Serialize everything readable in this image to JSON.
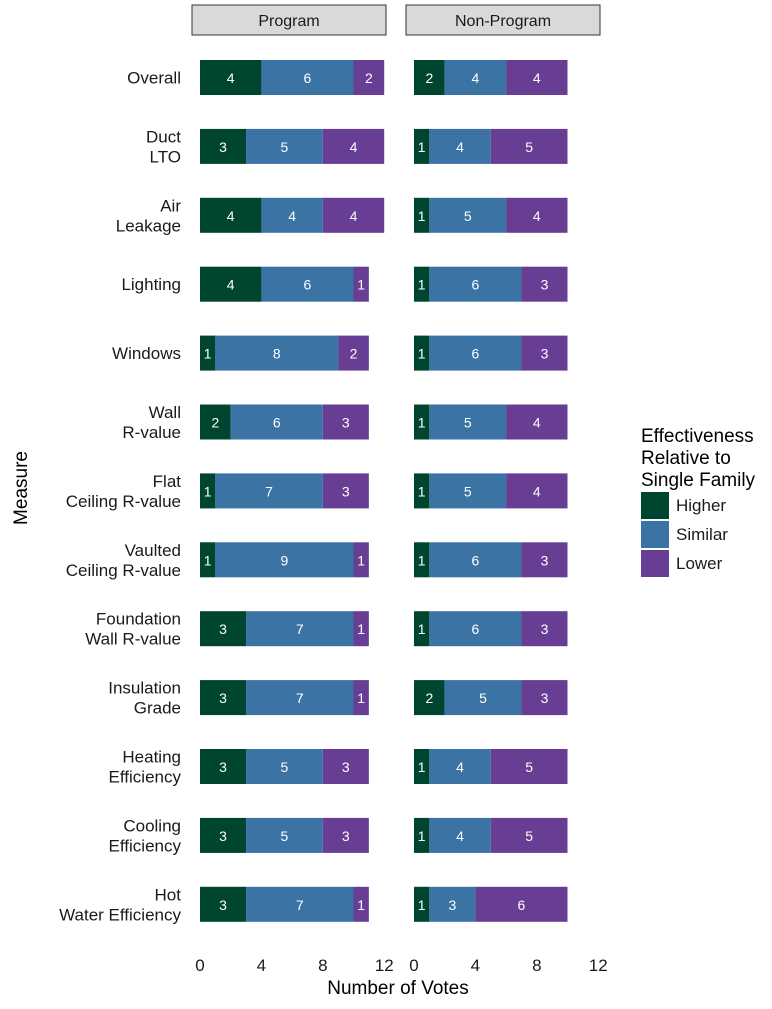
{
  "chart_data": {
    "type": "bar",
    "orientation": "horizontal",
    "stacked": true,
    "xlabel": "Number of Votes",
    "ylabel": "Measure",
    "xlim": [
      0,
      12
    ],
    "xticks": [
      0,
      4,
      8,
      12
    ],
    "grid": false,
    "legend": {
      "title_lines": [
        "Effectiveness",
        "Relative to",
        "Single Family"
      ],
      "placement": "right"
    },
    "series": [
      {
        "key": "higher",
        "name": "Higher",
        "color": "#00452f"
      },
      {
        "key": "similar",
        "name": "Similar",
        "color": "#3a73a4"
      },
      {
        "key": "lower",
        "name": "Lower",
        "color": "#673e93"
      }
    ],
    "categories": [
      {
        "lines": [
          "Overall"
        ]
      },
      {
        "lines": [
          "Duct",
          "LTO"
        ]
      },
      {
        "lines": [
          "Air",
          "Leakage"
        ]
      },
      {
        "lines": [
          "Lighting"
        ]
      },
      {
        "lines": [
          "Windows"
        ]
      },
      {
        "lines": [
          "Wall",
          "R-value"
        ]
      },
      {
        "lines": [
          "Flat",
          "Ceiling R-value"
        ]
      },
      {
        "lines": [
          "Vaulted",
          "Ceiling R-value"
        ]
      },
      {
        "lines": [
          "Foundation",
          "Wall R-value"
        ]
      },
      {
        "lines": [
          "Insulation",
          "Grade"
        ]
      },
      {
        "lines": [
          "Heating",
          "Efficiency"
        ]
      },
      {
        "lines": [
          "Cooling",
          "Efficiency"
        ]
      },
      {
        "lines": [
          "Hot",
          "Water Efficiency"
        ]
      }
    ],
    "panels": [
      {
        "title": "Program",
        "values": [
          [
            4,
            6,
            2
          ],
          [
            3,
            5,
            4
          ],
          [
            4,
            4,
            4
          ],
          [
            4,
            6,
            1
          ],
          [
            1,
            8,
            2
          ],
          [
            2,
            6,
            3
          ],
          [
            1,
            7,
            3
          ],
          [
            1,
            9,
            1
          ],
          [
            3,
            7,
            1
          ],
          [
            3,
            7,
            1
          ],
          [
            3,
            5,
            3
          ],
          [
            3,
            5,
            3
          ],
          [
            3,
            7,
            1
          ]
        ]
      },
      {
        "title": "Non-Program",
        "values": [
          [
            2,
            4,
            4
          ],
          [
            1,
            4,
            5
          ],
          [
            1,
            5,
            4
          ],
          [
            1,
            6,
            3
          ],
          [
            1,
            6,
            3
          ],
          [
            1,
            5,
            4
          ],
          [
            1,
            5,
            4
          ],
          [
            1,
            6,
            3
          ],
          [
            1,
            6,
            3
          ],
          [
            2,
            5,
            3
          ],
          [
            1,
            4,
            5
          ],
          [
            1,
            4,
            5
          ],
          [
            1,
            3,
            6
          ]
        ]
      }
    ]
  }
}
